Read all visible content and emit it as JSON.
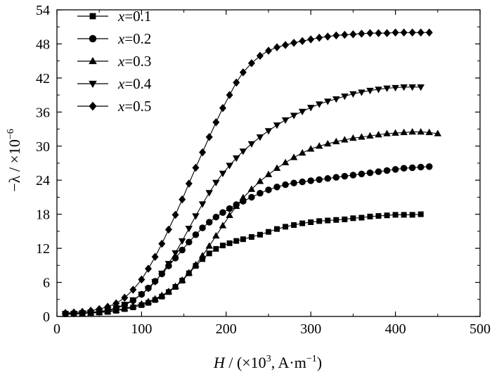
{
  "chart_data": {
    "type": "line",
    "title": "",
    "xlabel": {
      "italic": "H",
      "rest": " / (×10",
      "sup": "3",
      "tail": ", A·m",
      "sup2": "−1",
      "end": ")"
    },
    "ylabel": {
      "text": "−λ / ×10",
      "sup": "−6"
    },
    "xlim": [
      0,
      500
    ],
    "ylim": [
      0,
      54
    ],
    "xticks": [
      0,
      100,
      200,
      300,
      400,
      500
    ],
    "yticks": [
      0,
      6,
      12,
      18,
      24,
      30,
      36,
      42,
      48,
      54
    ],
    "legend_position": "top-left",
    "grid": false,
    "color": "#000000",
    "series": [
      {
        "name": "x=0.1",
        "name_parts": {
          "var": "x",
          "value": "=0.1"
        },
        "marker": "square",
        "points": [
          [
            10,
            0.4
          ],
          [
            20,
            0.5
          ],
          [
            30,
            0.5
          ],
          [
            40,
            0.6
          ],
          [
            50,
            0.7
          ],
          [
            60,
            0.8
          ],
          [
            70,
            1.0
          ],
          [
            80,
            1.3
          ],
          [
            90,
            1.6
          ],
          [
            100,
            2.0
          ],
          [
            108,
            2.4
          ],
          [
            116,
            2.9
          ],
          [
            124,
            3.5
          ],
          [
            132,
            4.3
          ],
          [
            140,
            5.2
          ],
          [
            148,
            6.3
          ],
          [
            156,
            7.6
          ],
          [
            164,
            8.9
          ],
          [
            172,
            10.1
          ],
          [
            180,
            11.1
          ],
          [
            188,
            11.9
          ],
          [
            196,
            12.5
          ],
          [
            204,
            12.9
          ],
          [
            212,
            13.3
          ],
          [
            220,
            13.6
          ],
          [
            230,
            14.0
          ],
          [
            240,
            14.4
          ],
          [
            250,
            14.9
          ],
          [
            260,
            15.4
          ],
          [
            270,
            15.8
          ],
          [
            280,
            16.1
          ],
          [
            290,
            16.4
          ],
          [
            300,
            16.6
          ],
          [
            310,
            16.8
          ],
          [
            320,
            16.9
          ],
          [
            330,
            17.0
          ],
          [
            340,
            17.1
          ],
          [
            350,
            17.3
          ],
          [
            360,
            17.4
          ],
          [
            370,
            17.6
          ],
          [
            380,
            17.7
          ],
          [
            390,
            17.8
          ],
          [
            400,
            17.9
          ],
          [
            410,
            17.9
          ],
          [
            420,
            17.9
          ],
          [
            430,
            18.0
          ]
        ]
      },
      {
        "name": "x=0.2",
        "name_parts": {
          "var": "x",
          "value": "=0.2"
        },
        "marker": "circle",
        "points": [
          [
            10,
            0.5
          ],
          [
            20,
            0.5
          ],
          [
            30,
            0.6
          ],
          [
            40,
            0.7
          ],
          [
            50,
            0.8
          ],
          [
            60,
            1.0
          ],
          [
            70,
            1.4
          ],
          [
            80,
            2.0
          ],
          [
            90,
            2.8
          ],
          [
            100,
            3.9
          ],
          [
            108,
            5.0
          ],
          [
            116,
            6.2
          ],
          [
            124,
            7.5
          ],
          [
            132,
            8.9
          ],
          [
            140,
            10.3
          ],
          [
            148,
            11.7
          ],
          [
            156,
            13.1
          ],
          [
            164,
            14.4
          ],
          [
            172,
            15.6
          ],
          [
            180,
            16.6
          ],
          [
            188,
            17.5
          ],
          [
            196,
            18.3
          ],
          [
            204,
            19.0
          ],
          [
            212,
            19.7
          ],
          [
            220,
            20.3
          ],
          [
            230,
            21.0
          ],
          [
            240,
            21.7
          ],
          [
            250,
            22.3
          ],
          [
            260,
            22.8
          ],
          [
            270,
            23.2
          ],
          [
            280,
            23.5
          ],
          [
            290,
            23.7
          ],
          [
            300,
            23.9
          ],
          [
            310,
            24.1
          ],
          [
            320,
            24.3
          ],
          [
            330,
            24.5
          ],
          [
            340,
            24.7
          ],
          [
            350,
            24.9
          ],
          [
            360,
            25.1
          ],
          [
            370,
            25.3
          ],
          [
            380,
            25.5
          ],
          [
            390,
            25.7
          ],
          [
            400,
            25.9
          ],
          [
            410,
            26.1
          ],
          [
            420,
            26.2
          ],
          [
            430,
            26.3
          ],
          [
            440,
            26.4
          ]
        ]
      },
      {
        "name": "x=0.3",
        "name_parts": {
          "var": "x",
          "value": "=0.3"
        },
        "marker": "triangle-up",
        "points": [
          [
            10,
            0.4
          ],
          [
            20,
            0.4
          ],
          [
            30,
            0.5
          ],
          [
            40,
            0.6
          ],
          [
            50,
            0.7
          ],
          [
            60,
            0.9
          ],
          [
            70,
            1.1
          ],
          [
            80,
            1.4
          ],
          [
            90,
            1.8
          ],
          [
            100,
            2.2
          ],
          [
            108,
            2.6
          ],
          [
            116,
            3.1
          ],
          [
            124,
            3.7
          ],
          [
            132,
            4.4
          ],
          [
            140,
            5.3
          ],
          [
            148,
            6.4
          ],
          [
            156,
            7.7
          ],
          [
            164,
            9.1
          ],
          [
            172,
            10.7
          ],
          [
            180,
            12.4
          ],
          [
            188,
            14.2
          ],
          [
            196,
            16.0
          ],
          [
            204,
            17.8
          ],
          [
            212,
            19.4
          ],
          [
            220,
            20.9
          ],
          [
            230,
            22.4
          ],
          [
            240,
            23.8
          ],
          [
            250,
            25.0
          ],
          [
            260,
            26.1
          ],
          [
            270,
            27.1
          ],
          [
            280,
            28.0
          ],
          [
            290,
            28.8
          ],
          [
            300,
            29.5
          ],
          [
            310,
            30.0
          ],
          [
            320,
            30.4
          ],
          [
            330,
            30.8
          ],
          [
            340,
            31.1
          ],
          [
            350,
            31.4
          ],
          [
            360,
            31.6
          ],
          [
            370,
            31.8
          ],
          [
            380,
            32.0
          ],
          [
            390,
            32.2
          ],
          [
            400,
            32.3
          ],
          [
            410,
            32.4
          ],
          [
            420,
            32.5
          ],
          [
            430,
            32.5
          ],
          [
            440,
            32.4
          ],
          [
            450,
            32.2
          ]
        ]
      },
      {
        "name": "x=0.4",
        "name_parts": {
          "var": "x",
          "value": "=0.4"
        },
        "marker": "triangle-down",
        "points": [
          [
            10,
            0.5
          ],
          [
            20,
            0.5
          ],
          [
            30,
            0.6
          ],
          [
            40,
            0.7
          ],
          [
            50,
            0.9
          ],
          [
            60,
            1.1
          ],
          [
            70,
            1.5
          ],
          [
            80,
            2.1
          ],
          [
            90,
            2.9
          ],
          [
            100,
            3.9
          ],
          [
            108,
            4.9
          ],
          [
            116,
            6.1
          ],
          [
            124,
            7.6
          ],
          [
            132,
            9.3
          ],
          [
            140,
            11.2
          ],
          [
            148,
            13.3
          ],
          [
            156,
            15.5
          ],
          [
            164,
            17.7
          ],
          [
            172,
            19.8
          ],
          [
            180,
            21.8
          ],
          [
            188,
            23.6
          ],
          [
            196,
            25.2
          ],
          [
            204,
            26.6
          ],
          [
            212,
            27.9
          ],
          [
            220,
            29.1
          ],
          [
            230,
            30.4
          ],
          [
            240,
            31.6
          ],
          [
            250,
            32.7
          ],
          [
            260,
            33.7
          ],
          [
            270,
            34.6
          ],
          [
            280,
            35.4
          ],
          [
            290,
            36.1
          ],
          [
            300,
            36.8
          ],
          [
            310,
            37.4
          ],
          [
            320,
            37.9
          ],
          [
            330,
            38.3
          ],
          [
            340,
            38.8
          ],
          [
            350,
            39.2
          ],
          [
            360,
            39.5
          ],
          [
            370,
            39.8
          ],
          [
            380,
            40.0
          ],
          [
            390,
            40.2
          ],
          [
            400,
            40.3
          ],
          [
            410,
            40.4
          ],
          [
            420,
            40.4
          ],
          [
            430,
            40.4
          ]
        ]
      },
      {
        "name": "x=0.5",
        "name_parts": {
          "var": "x",
          "value": "=0.5"
        },
        "marker": "diamond",
        "points": [
          [
            10,
            0.6
          ],
          [
            20,
            0.7
          ],
          [
            30,
            0.8
          ],
          [
            40,
            1.0
          ],
          [
            50,
            1.3
          ],
          [
            60,
            1.7
          ],
          [
            70,
            2.3
          ],
          [
            80,
            3.3
          ],
          [
            90,
            4.7
          ],
          [
            100,
            6.5
          ],
          [
            108,
            8.4
          ],
          [
            116,
            10.5
          ],
          [
            124,
            12.8
          ],
          [
            132,
            15.3
          ],
          [
            140,
            17.9
          ],
          [
            148,
            20.6
          ],
          [
            156,
            23.4
          ],
          [
            164,
            26.2
          ],
          [
            172,
            28.9
          ],
          [
            180,
            31.6
          ],
          [
            188,
            34.2
          ],
          [
            196,
            36.7
          ],
          [
            204,
            39.0
          ],
          [
            212,
            41.2
          ],
          [
            220,
            43.0
          ],
          [
            230,
            44.6
          ],
          [
            240,
            45.9
          ],
          [
            250,
            46.8
          ],
          [
            260,
            47.4
          ],
          [
            270,
            47.8
          ],
          [
            280,
            48.2
          ],
          [
            290,
            48.5
          ],
          [
            300,
            48.8
          ],
          [
            310,
            49.1
          ],
          [
            320,
            49.3
          ],
          [
            330,
            49.5
          ],
          [
            340,
            49.6
          ],
          [
            350,
            49.7
          ],
          [
            360,
            49.8
          ],
          [
            370,
            49.9
          ],
          [
            380,
            49.9
          ],
          [
            390,
            49.9
          ],
          [
            400,
            50.0
          ],
          [
            410,
            50.0
          ],
          [
            420,
            50.0
          ],
          [
            430,
            50.0
          ],
          [
            440,
            50.0
          ]
        ]
      }
    ]
  }
}
